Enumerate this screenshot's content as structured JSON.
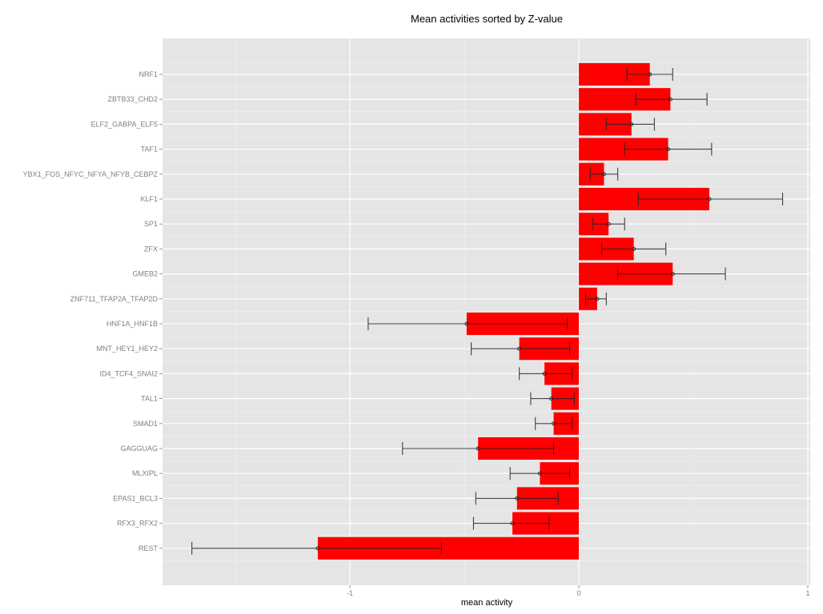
{
  "chart_data": {
    "type": "bar",
    "orientation": "horizontal",
    "title": "Mean activities sorted by Z-value",
    "xlabel": "mean activity",
    "ylabel": "",
    "xlim": [
      -1.818,
      1.013
    ],
    "xticks": [
      -1,
      0,
      1
    ],
    "xtick_labels": [
      "-1",
      "0",
      "1"
    ],
    "grid": true,
    "bar_color": "#ff0000",
    "panel_color": "#e5e5e5",
    "categories": [
      "NRF1",
      "ZBTB33_CHD2",
      "ELF2_GABPA_ELF5",
      "TAF1",
      "YBX1_FOS_NFYC_NFYA_NFYB_CEBPZ",
      "KLF1",
      "SP1",
      "ZFX",
      "GMEB2",
      "ZNF711_TFAP2A_TFAP2D",
      "HNF1A_HNF1B",
      "MNT_HEY1_HEY2",
      "ID4_TCF4_SNAI2",
      "TAL1",
      "SMAD1",
      "GAGGUAG",
      "MLXIPL",
      "EPAS1_BCL3",
      "RFX3_RFX2",
      "REST"
    ],
    "values": [
      0.31,
      0.4,
      0.23,
      0.39,
      0.11,
      0.57,
      0.13,
      0.24,
      0.41,
      0.08,
      -0.49,
      -0.26,
      -0.15,
      -0.12,
      -0.11,
      -0.44,
      -0.17,
      -0.27,
      -0.29,
      -1.14
    ],
    "error_low": [
      0.21,
      0.25,
      0.12,
      0.2,
      0.05,
      0.26,
      0.06,
      0.1,
      0.17,
      0.03,
      -0.92,
      -0.47,
      -0.26,
      -0.21,
      -0.19,
      -0.77,
      -0.3,
      -0.45,
      -0.46,
      -1.69
    ],
    "error_high": [
      0.41,
      0.56,
      0.33,
      0.58,
      0.17,
      0.89,
      0.2,
      0.38,
      0.64,
      0.12,
      -0.05,
      -0.04,
      -0.03,
      -0.02,
      -0.03,
      -0.11,
      -0.04,
      -0.09,
      -0.13,
      -0.6
    ]
  }
}
